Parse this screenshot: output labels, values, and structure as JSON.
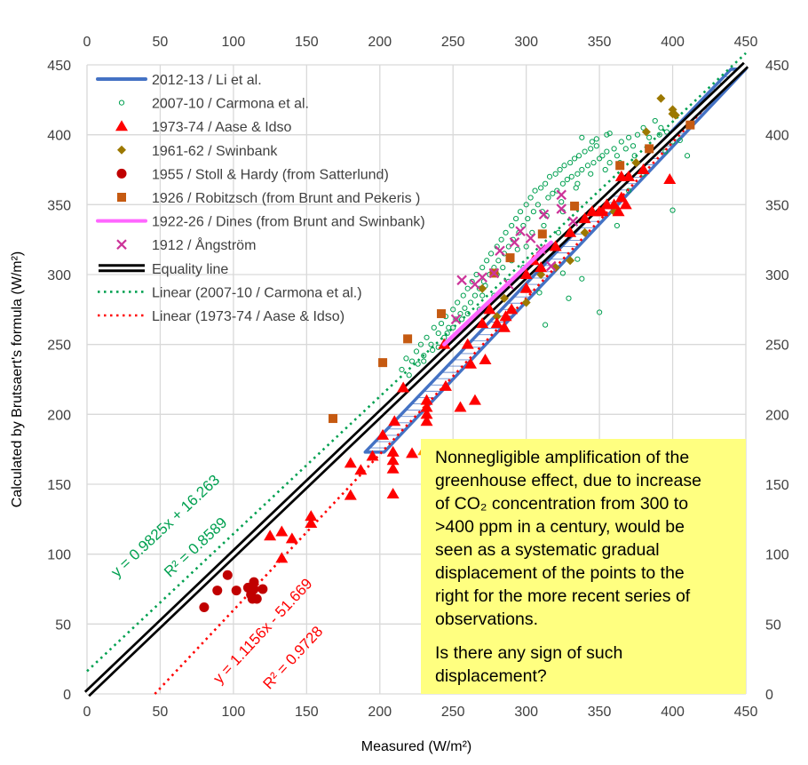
{
  "chart_data": {
    "type": "scatter",
    "xlabel": "Measured (W/m²)",
    "ylabel": "Calculated by Brutsaert's formula (W/m²)",
    "xlim": [
      0,
      450
    ],
    "ylim": [
      0,
      450
    ],
    "xticks": [
      0,
      50,
      100,
      150,
      200,
      250,
      300,
      350,
      400,
      450
    ],
    "yticks": [
      0,
      50,
      100,
      150,
      200,
      250,
      300,
      350,
      400,
      450
    ],
    "grid": true,
    "legend_placement": "top-left",
    "colors": {
      "li": "#4472c4",
      "carmona": "#00a050",
      "aase": "#ff0000",
      "swinbank": "#9c7800",
      "stoll": "#c00000",
      "robitzsch": "#c55a11",
      "dines": "#ff66ff",
      "angstrom": "#cc3399",
      "equality": "#000000",
      "highlight": "#ff9900"
    },
    "series": [
      {
        "key": "li",
        "name": "2012-13 / Li et al.",
        "marker": "line-band",
        "band": [
          [
            190,
            173
          ],
          [
            440,
            447
          ],
          [
            450,
            447
          ],
          [
            203,
            173
          ]
        ]
      },
      {
        "key": "carmona",
        "name": "2007-10 / Carmona et al.",
        "marker": "open-circle",
        "points": [
          [
            215,
            232
          ],
          [
            218,
            240
          ],
          [
            222,
            238
          ],
          [
            225,
            245
          ],
          [
            228,
            250
          ],
          [
            230,
            242
          ],
          [
            232,
            255
          ],
          [
            235,
            250
          ],
          [
            237,
            262
          ],
          [
            240,
            258
          ],
          [
            242,
            265
          ],
          [
            244,
            255
          ],
          [
            245,
            270
          ],
          [
            247,
            262
          ],
          [
            250,
            275
          ],
          [
            252,
            268
          ],
          [
            253,
            280
          ],
          [
            255,
            272
          ],
          [
            257,
            285
          ],
          [
            258,
            276
          ],
          [
            260,
            290
          ],
          [
            262,
            280
          ],
          [
            263,
            295
          ],
          [
            265,
            285
          ],
          [
            266,
            300
          ],
          [
            268,
            290
          ],
          [
            270,
            305
          ],
          [
            271,
            295
          ],
          [
            273,
            310
          ],
          [
            275,
            300
          ],
          [
            276,
            315
          ],
          [
            278,
            305
          ],
          [
            280,
            320
          ],
          [
            281,
            310
          ],
          [
            283,
            325
          ],
          [
            285,
            315
          ],
          [
            286,
            330
          ],
          [
            288,
            320
          ],
          [
            290,
            335
          ],
          [
            291,
            325
          ],
          [
            293,
            340
          ],
          [
            295,
            330
          ],
          [
            296,
            345
          ],
          [
            298,
            335
          ],
          [
            300,
            350
          ],
          [
            301,
            340
          ],
          [
            303,
            355
          ],
          [
            305,
            345
          ],
          [
            306,
            360
          ],
          [
            308,
            350
          ],
          [
            310,
            362
          ],
          [
            311,
            345
          ],
          [
            313,
            365
          ],
          [
            315,
            355
          ],
          [
            316,
            370
          ],
          [
            318,
            358
          ],
          [
            320,
            372
          ],
          [
            321,
            360
          ],
          [
            323,
            375
          ],
          [
            325,
            365
          ],
          [
            326,
            378
          ],
          [
            328,
            368
          ],
          [
            330,
            380
          ],
          [
            331,
            370
          ],
          [
            333,
            383
          ],
          [
            335,
            372
          ],
          [
            336,
            385
          ],
          [
            338,
            375
          ],
          [
            340,
            388
          ],
          [
            342,
            378
          ],
          [
            344,
            390
          ],
          [
            346,
            380
          ],
          [
            348,
            392
          ],
          [
            350,
            383
          ],
          [
            352,
            385
          ],
          [
            355,
            388
          ],
          [
            357,
            380
          ],
          [
            360,
            390
          ],
          [
            362,
            385
          ],
          [
            365,
            395
          ],
          [
            368,
            390
          ],
          [
            370,
            398
          ],
          [
            373,
            392
          ],
          [
            376,
            400
          ],
          [
            380,
            405
          ],
          [
            384,
            398
          ],
          [
            388,
            410
          ],
          [
            392,
            405
          ],
          [
            396,
            402
          ],
          [
            400,
            395
          ],
          [
            395,
            388
          ],
          [
            405,
            396
          ],
          [
            410,
            385
          ],
          [
            355,
            400
          ],
          [
            345,
            395
          ],
          [
            338,
            398
          ],
          [
            335,
            365
          ],
          [
            325,
            345
          ],
          [
            312,
            335
          ],
          [
            300,
            320
          ],
          [
            290,
            310
          ],
          [
            280,
            300
          ],
          [
            270,
            285
          ],
          [
            260,
            272
          ],
          [
            250,
            262
          ],
          [
            240,
            248
          ],
          [
            230,
            238
          ],
          [
            258,
            260
          ],
          [
            268,
            275
          ],
          [
            278,
            285
          ],
          [
            288,
            295
          ],
          [
            298,
            305
          ],
          [
            350,
            273
          ],
          [
            329,
            283
          ],
          [
            338,
            297
          ],
          [
            335,
            311
          ],
          [
            313,
            264
          ],
          [
            309,
            287
          ],
          [
            325,
            301
          ],
          [
            299,
            299
          ],
          [
            318,
            318
          ],
          [
            322,
            330
          ],
          [
            362,
            335
          ],
          [
            400,
            346
          ],
          [
            391,
            400
          ],
          [
            380,
            372
          ],
          [
            370,
            360
          ],
          [
            348,
            397
          ],
          [
            357,
            401
          ],
          [
            220,
            228
          ],
          [
            226,
            236
          ],
          [
            236,
            246
          ],
          [
            246,
            258
          ],
          [
            256,
            268
          ],
          [
            272,
            292
          ],
          [
            284,
            305
          ],
          [
            294,
            318
          ],
          [
            304,
            330
          ],
          [
            314,
            342
          ],
          [
            324,
            352
          ],
          [
            334,
            362
          ],
          [
            344,
            372
          ],
          [
            354,
            375
          ],
          [
            364,
            380
          ],
          [
            374,
            385
          ]
        ]
      },
      {
        "key": "aase",
        "name": "1973-74 / Aase & Idso",
        "marker": "triangle",
        "points": [
          [
            216,
            219
          ],
          [
            232,
            210
          ],
          [
            232,
            205
          ],
          [
            232,
            200
          ],
          [
            232,
            195
          ],
          [
            210,
            195
          ],
          [
            209,
            173
          ],
          [
            209,
            167
          ],
          [
            209,
            161
          ],
          [
            209,
            143
          ],
          [
            222,
            172
          ],
          [
            202,
            185
          ],
          [
            195,
            170
          ],
          [
            187,
            160
          ],
          [
            180,
            165
          ],
          [
            180,
            142
          ],
          [
            125,
            113
          ],
          [
            133,
            116
          ],
          [
            140,
            111
          ],
          [
            133,
            97
          ],
          [
            153,
            127
          ],
          [
            153,
            122
          ],
          [
            245,
            220
          ],
          [
            255,
            205
          ],
          [
            262,
            236
          ],
          [
            272,
            239
          ],
          [
            265,
            210
          ],
          [
            280,
            265
          ],
          [
            286,
            270
          ],
          [
            290,
            275
          ],
          [
            260,
            250
          ],
          [
            244,
            250
          ],
          [
            270,
            265
          ],
          [
            285,
            262
          ],
          [
            275,
            275
          ],
          [
            300,
            300
          ],
          [
            305,
            310
          ],
          [
            300,
            290
          ],
          [
            310,
            305
          ],
          [
            320,
            320
          ],
          [
            330,
            330
          ],
          [
            340,
            340
          ],
          [
            345,
            345
          ],
          [
            350,
            345
          ],
          [
            355,
            350
          ],
          [
            360,
            350
          ],
          [
            365,
            355
          ],
          [
            365,
            370
          ],
          [
            370,
            370
          ],
          [
            380,
            375
          ],
          [
            398,
            368
          ],
          [
            368,
            350
          ],
          [
            363,
            345
          ],
          [
            352,
            345
          ]
        ]
      },
      {
        "key": "swinbank",
        "name": "1961-62 / Swinbank",
        "marker": "diamond",
        "points": [
          [
            392,
            426
          ],
          [
            400,
            418
          ],
          [
            402,
            414
          ],
          [
            382,
            402
          ],
          [
            375,
            380
          ],
          [
            360,
            345
          ],
          [
            330,
            310
          ],
          [
            320,
            305
          ],
          [
            300,
            280
          ],
          [
            290,
            275
          ],
          [
            285,
            283
          ],
          [
            270,
            290
          ],
          [
            280,
            270
          ],
          [
            400,
            415
          ],
          [
            340,
            330
          ],
          [
            310,
            300
          ]
        ]
      },
      {
        "key": "stoll",
        "name": "1955 / Stoll & Hardy (from Satterlund)",
        "marker": "circle",
        "points": [
          [
            80,
            62
          ],
          [
            89,
            74
          ],
          [
            96,
            85
          ],
          [
            102,
            74
          ],
          [
            110,
            76
          ],
          [
            112,
            71
          ],
          [
            113,
            68
          ],
          [
            114,
            80
          ],
          [
            114,
            75
          ],
          [
            120,
            75
          ],
          [
            116,
            68
          ]
        ]
      },
      {
        "key": "robitzsch",
        "name": "1926 / Robitzsch (from Brunt and Pekeris )",
        "marker": "square",
        "points": [
          [
            168,
            197
          ],
          [
            202,
            237
          ],
          [
            219,
            254
          ],
          [
            242,
            272
          ],
          [
            412,
            407
          ],
          [
            384,
            390
          ],
          [
            364,
            378
          ],
          [
            333,
            349
          ],
          [
            311,
            329
          ],
          [
            289,
            312
          ],
          [
            278,
            301
          ]
        ]
      },
      {
        "key": "dines",
        "name": "1922-26 / Dines (from Brunt and Swinbank)",
        "marker": "line",
        "line": [
          [
            244,
            250
          ],
          [
            317,
            323
          ]
        ]
      },
      {
        "key": "angstrom",
        "name": "1912 / Ångström",
        "marker": "x",
        "points": [
          [
            256,
            296
          ],
          [
            324,
            357
          ],
          [
            324,
            347
          ],
          [
            312,
            343
          ],
          [
            296,
            331
          ],
          [
            292,
            323
          ],
          [
            303,
            326
          ],
          [
            282,
            317
          ],
          [
            270,
            298
          ],
          [
            265,
            293
          ],
          [
            278,
            301
          ],
          [
            252,
            268
          ],
          [
            288,
            293
          ],
          [
            317,
            306
          ],
          [
            310,
            318
          ],
          [
            332,
            338
          ]
        ]
      },
      {
        "key": "equality",
        "name": "Equality line",
        "marker": "double-line"
      },
      {
        "key": "carmona_fit",
        "name": "Linear (2007-10 / Carmona et al.)",
        "marker": "dotted",
        "slope": 0.9825,
        "intercept": 16.263,
        "x_range": [
          0,
          450
        ],
        "color_key": "carmona"
      },
      {
        "key": "aase_fit",
        "name": "Linear (1973-74 / Aase & Idso)",
        "marker": "dotted",
        "slope": 1.1156,
        "intercept": -51.669,
        "x_range": [
          46.3,
          450
        ],
        "color_key": "aase"
      }
    ],
    "highlight_point": [
      230,
      174
    ],
    "annotations": {
      "carmona_eq": "y = 0.9825x + 16.263",
      "carmona_r2": "R² = 0.8589",
      "aase_eq": "y = 1.1156x - 51.669",
      "aase_r2": "R² = 0.9728"
    }
  },
  "note": {
    "lines": [
      "Nonnegligible amplification of the",
      "greenhouse effect, due to increase",
      "of CO₂ concentration from 300 to",
      ">400 ppm in a century, would be",
      "seen as a systematic gradual",
      "displacement of the points to the",
      "right for the more recent series of",
      "observations."
    ],
    "question_lines": [
      "Is there any sign of such",
      "displacement?"
    ]
  }
}
